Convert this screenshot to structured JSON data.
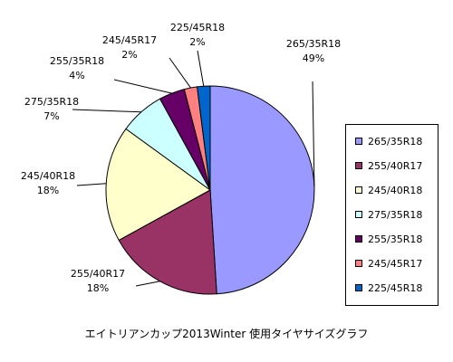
{
  "chart_data": {
    "type": "pie",
    "title": "エイトリアンカップ2013Winter  使用タイヤサイズグラフ",
    "slices": [
      {
        "label": "265/35R18",
        "value": 49,
        "value_label": "49%",
        "color": "#9999ff"
      },
      {
        "label": "255/40R17",
        "value": 18,
        "value_label": "18%",
        "color": "#993366"
      },
      {
        "label": "245/40R18",
        "value": 18,
        "value_label": "18%",
        "color": "#ffffcc"
      },
      {
        "label": "275/35R18",
        "value": 7,
        "value_label": "7%",
        "color": "#ccffff"
      },
      {
        "label": "255/35R18",
        "value": 4,
        "value_label": "4%",
        "color": "#660066"
      },
      {
        "label": "245/45R17",
        "value": 2,
        "value_label": "2%",
        "color": "#ff8080"
      },
      {
        "label": "225/45R18",
        "value": 2,
        "value_label": "2%",
        "color": "#0066cc"
      }
    ],
    "legend_position": "right",
    "start_angle": "top, clockwise"
  }
}
